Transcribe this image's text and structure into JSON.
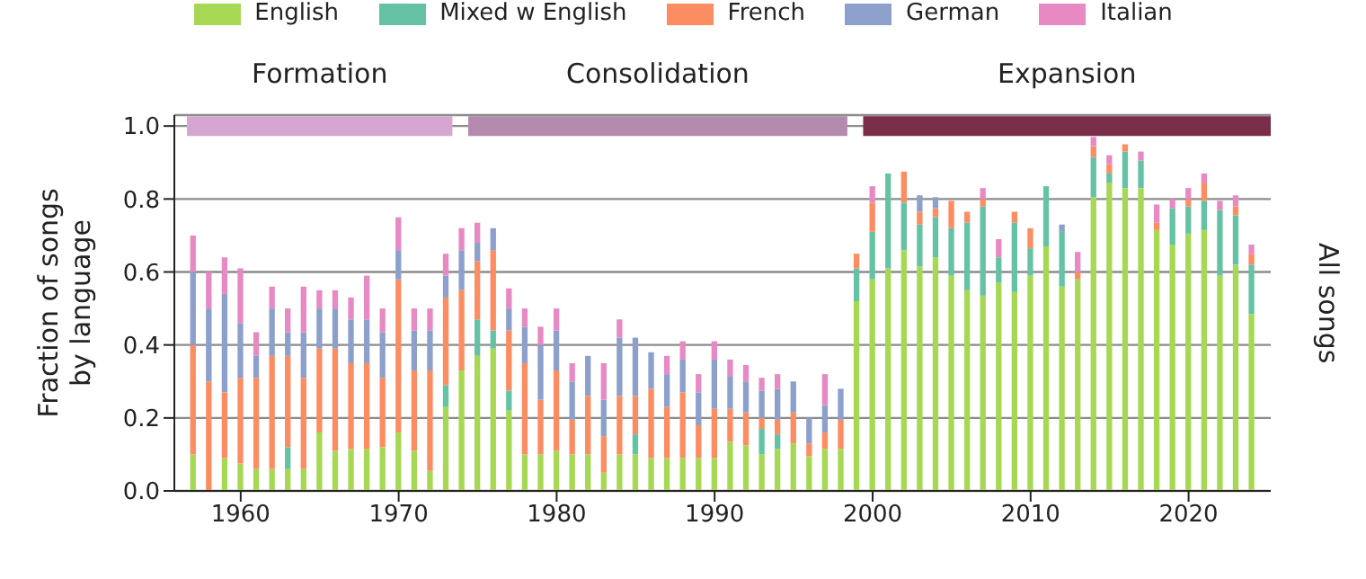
{
  "chart_data": {
    "type": "bar",
    "stacked": true,
    "ylabel": "Fraction of songs\nby language",
    "annotations": [
      "All songs"
    ],
    "x": [
      1957,
      1958,
      1959,
      1960,
      1961,
      1962,
      1963,
      1964,
      1965,
      1966,
      1967,
      1968,
      1969,
      1970,
      1971,
      1972,
      1973,
      1974,
      1975,
      1976,
      1977,
      1978,
      1979,
      1980,
      1981,
      1982,
      1983,
      1984,
      1985,
      1986,
      1987,
      1988,
      1989,
      1990,
      1991,
      1992,
      1993,
      1994,
      1995,
      1996,
      1997,
      1998,
      1999,
      2000,
      2001,
      2002,
      2003,
      2004,
      2005,
      2006,
      2007,
      2008,
      2009,
      2010,
      2011,
      2012,
      2013,
      2014,
      2015,
      2016,
      2017,
      2018,
      2019,
      2020,
      2021,
      2022,
      2023,
      2024
    ],
    "series": [
      {
        "name": "English",
        "color": "#a6d854",
        "values": [
          0.1,
          0,
          0.09,
          0.075,
          0.06,
          0.06,
          0.06,
          0.06,
          0.16,
          0.11,
          0.115,
          0.115,
          0.12,
          0.16,
          0.11,
          0.055,
          0.23,
          0.33,
          0.37,
          0.39,
          0.22,
          0.1,
          0.1,
          0.11,
          0.1,
          0.1,
          0.05,
          0.1,
          0.1,
          0.09,
          0.09,
          0.09,
          0.09,
          0.09,
          0.135,
          0.125,
          0.1,
          0.115,
          0.13,
          0.095,
          0.115,
          0.115,
          0.52,
          0.58,
          0.61,
          0.66,
          0.615,
          0.64,
          0.59,
          0.55,
          0.535,
          0.57,
          0.545,
          0.59,
          0.67,
          0.56,
          0.58,
          0.805,
          0.845,
          0.83,
          0.83,
          0.715,
          0.675,
          0.705,
          0.715,
          0.59,
          0.62,
          0.485
        ]
      },
      {
        "name": "Mixed w English",
        "color": "#66c2a5",
        "values": [
          0,
          0,
          0,
          0,
          0,
          0,
          0.06,
          0,
          0,
          0,
          0,
          0,
          0,
          0,
          0,
          0,
          0.06,
          0,
          0.1,
          0.05,
          0.055,
          0,
          0,
          0,
          0,
          0,
          0,
          0,
          0.055,
          0,
          0,
          0,
          0,
          0,
          0,
          0,
          0.07,
          0.04,
          0,
          0,
          0,
          0,
          0.09,
          0.13,
          0.26,
          0.13,
          0.115,
          0.11,
          0.13,
          0.185,
          0.245,
          0.07,
          0.19,
          0.075,
          0.165,
          0.15,
          0,
          0.11,
          0.025,
          0.1,
          0.075,
          0,
          0.1,
          0.075,
          0.08,
          0.18,
          0.135,
          0.135
        ]
      },
      {
        "name": "French",
        "color": "#fc8d62",
        "values": [
          0.3,
          0.3,
          0.18,
          0.235,
          0.25,
          0.31,
          0.25,
          0.25,
          0.23,
          0.28,
          0.235,
          0.235,
          0.19,
          0.42,
          0.22,
          0.275,
          0.24,
          0.22,
          0.16,
          0.22,
          0.165,
          0.25,
          0.15,
          0.22,
          0.095,
          0.16,
          0.1,
          0.16,
          0.105,
          0.19,
          0.14,
          0.18,
          0.09,
          0.135,
          0.09,
          0.09,
          0.03,
          0.04,
          0.085,
          0.035,
          0.045,
          0.08,
          0.04,
          0.08,
          0,
          0.085,
          0.035,
          0.025,
          0.075,
          0.03,
          0.02,
          0,
          0.03,
          0.055,
          0,
          0,
          0.02,
          0.03,
          0.025,
          0.02,
          0,
          0.02,
          0,
          0.02,
          0.05,
          0,
          0.025,
          0.03
        ]
      },
      {
        "name": "German",
        "color": "#8da0cb",
        "values": [
          0.2,
          0.2,
          0.27,
          0.15,
          0.06,
          0.13,
          0.065,
          0.125,
          0.11,
          0.11,
          0.12,
          0.12,
          0.125,
          0.08,
          0.11,
          0.11,
          0.06,
          0.11,
          0.05,
          0.06,
          0.06,
          0.1,
          0.15,
          0.11,
          0.105,
          0.11,
          0.1,
          0.16,
          0.16,
          0.1,
          0.09,
          0.09,
          0.09,
          0.135,
          0.09,
          0.085,
          0.075,
          0.085,
          0.085,
          0.07,
          0.075,
          0.085,
          0,
          0,
          0,
          0,
          0.045,
          0.03,
          0,
          0,
          0,
          0,
          0,
          0,
          0,
          0.02,
          0,
          0,
          0,
          0,
          0,
          0,
          0,
          0,
          0,
          0,
          0,
          0
        ]
      },
      {
        "name": "Italian",
        "color": "#e78ac3",
        "values": [
          0.1,
          0.1,
          0.1,
          0.15,
          0.065,
          0.06,
          0.065,
          0.125,
          0.05,
          0.05,
          0.06,
          0.12,
          0.065,
          0.09,
          0.06,
          0.06,
          0.06,
          0.06,
          0.055,
          0,
          0.055,
          0.05,
          0.05,
          0.06,
          0.05,
          0,
          0.1,
          0.05,
          0,
          0,
          0.05,
          0.05,
          0.05,
          0.05,
          0.045,
          0.045,
          0.035,
          0.04,
          0,
          0,
          0.085,
          0,
          0,
          0.045,
          0,
          0,
          0,
          0,
          0,
          0,
          0.03,
          0.05,
          0,
          0,
          0,
          0,
          0.055,
          0.025,
          0.025,
          0,
          0.025,
          0.05,
          0.025,
          0.03,
          0.025,
          0.025,
          0.03,
          0.025
        ]
      },
      {
        "name": "Formation",
        "type": "line",
        "color": "#d4a6d0",
        "x": [
          1956.6,
          1973.4
        ],
        "values": [
          1.0,
          1.0
        ]
      },
      {
        "name": "Consolidation",
        "type": "line",
        "color": "#b48aaf",
        "x": [
          1974.4,
          1998.4
        ],
        "values": [
          1.0,
          1.0
        ]
      },
      {
        "name": "Expansion",
        "type": "line",
        "color": "#7a2e4a",
        "x": [
          1999.4,
          2025.2
        ],
        "values": [
          1.0,
          1.0
        ]
      }
    ],
    "xlim": [
      1955.8,
      2025.2
    ],
    "xticks": [
      1960,
      1970,
      1980,
      1990,
      2000,
      2010,
      2020
    ],
    "ylim": [
      0,
      1.03
    ],
    "yticks": [
      {
        "value": 0,
        "label": "0.0"
      },
      0.2,
      0.4,
      0.6,
      0.8,
      {
        "value": 1.0,
        "label": "1.0"
      }
    ],
    "grid": "y",
    "legend": "top"
  }
}
